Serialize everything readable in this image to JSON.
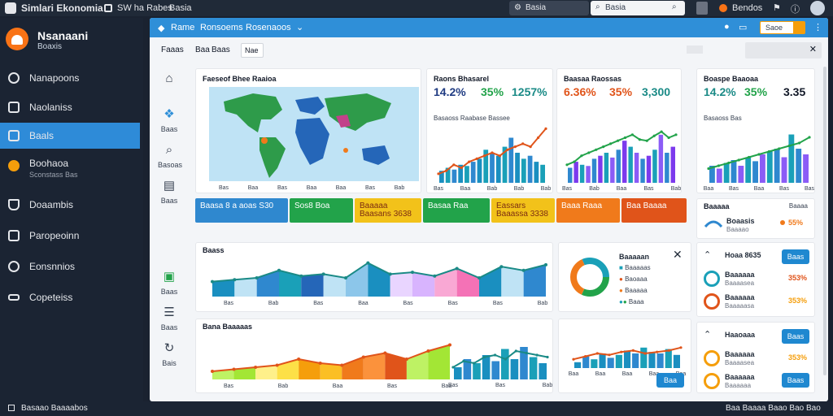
{
  "topbar": {
    "app_title": "Simlari Ekonomia",
    "menu_1": "SW ha Rabes",
    "menu_2": "Basia",
    "center_label": "Basia",
    "search_text": "Basia",
    "user_label": "Bendos"
  },
  "sidebar": {
    "brand_title": "Nsanaani",
    "brand_subtitle": "Boaxis",
    "items": [
      {
        "label": "Nanapoons",
        "sub": ""
      },
      {
        "label": "Naolaniss",
        "sub": ""
      },
      {
        "label": "Baals",
        "sub": ""
      },
      {
        "label": "Boohaoa",
        "sub": "Sconstass Bas"
      },
      {
        "label": "Doaambis",
        "sub": ""
      },
      {
        "label": "Paropeoinn",
        "sub": ""
      },
      {
        "label": "Eonsnnios",
        "sub": ""
      },
      {
        "label": "Copeteiss",
        "sub": ""
      }
    ]
  },
  "window": {
    "tabs": [
      "Rame",
      "Ronsoems",
      "Rosenaoos"
    ],
    "toolbar": [
      "Faaas",
      "Baa",
      "Baas"
    ],
    "toolbar_field_value": "Nae",
    "orange_btn": "Saoe",
    "right_field_value": ""
  },
  "rail": [
    "",
    "Baas",
    "Basoas",
    "Baas",
    "Baas",
    "Baas",
    "Bais"
  ],
  "map_card": {
    "title": "Faeseof Bhee Raaioa",
    "ticks": [
      "Bas",
      "Baa",
      "Bas",
      "Baa",
      "Baa",
      "Bas",
      "Bab"
    ]
  },
  "card_a": {
    "title": "Raons Bhasarel",
    "kpi_1": "14.2%",
    "kpi_2": "35%",
    "kpi_3": "1257%",
    "legend": "Basaoss Raabase Bassee",
    "ticks": [
      "Bas",
      "Baa",
      "Bab",
      "Bab",
      "Bab"
    ]
  },
  "card_b": {
    "title": "Baasaa Raossas",
    "kpi_1": "6.36%",
    "kpi_2": "35%",
    "kpi_3": "3,300",
    "ticks": [
      "Bas",
      "Bab",
      "Baa",
      "Bas",
      "Bab"
    ]
  },
  "card_c": {
    "title": "Boaspe Baaoaa",
    "kpi_1": "14.2%",
    "kpi_2": "35%",
    "kpi_3": "3.35",
    "legend": "Basaoss Bas",
    "ticks": [
      "Baa",
      "Bas",
      "Baa",
      "Bas",
      "Bas"
    ]
  },
  "tiles": [
    {
      "l1": "Baasa 8 a aoas",
      "l2": "S30",
      "color": "#2f88cf"
    },
    {
      "l1": "Sos8 Boa",
      "l2": "",
      "color": "#22a34a"
    },
    {
      "l1": "Baaaaa",
      "l2": "Baasans 3638",
      "color": "#f2c21a"
    },
    {
      "l1": "Basaa Raa",
      "l2": "",
      "color": "#22a34a"
    },
    {
      "l1": "Eassars",
      "l2": "Baaassa 3338",
      "color": "#f2c21a"
    },
    {
      "l1": "Baaa Raaa",
      "l2": "",
      "color": "#f07a1b"
    },
    {
      "l1": "Baa Baaaa",
      "l2": "",
      "color": "#e0541a"
    }
  ],
  "right_panel": {
    "title": "Baaaaa",
    "link": "Baaaa",
    "row1": {
      "name": "Boaasis",
      "sub": "Baaaao",
      "val": "55%"
    }
  },
  "area_card_1": {
    "title": "Baass",
    "ticks": [
      "Bas",
      "Bab",
      "Bas",
      "Baa",
      "Bas",
      "Bas",
      "Bas",
      "Bab"
    ]
  },
  "donut_card": {
    "title": "Baaaaan",
    "legend": [
      "Baaaaas",
      "Baoaaa",
      "Baaaaa",
      "Baaa"
    ]
  },
  "list_card_1": {
    "title": "Hoaa 8635",
    "btn": "Baas",
    "rows": [
      {
        "name": "Baaaaaa",
        "sub": "Baaaasea",
        "val": "353%"
      },
      {
        "name": "Baaaaaa",
        "sub": "Baaaaasa",
        "val": "353%"
      }
    ]
  },
  "area_card_2": {
    "title": "Bana Baaaaas",
    "ticks": [
      "Bas",
      "Bab",
      "Baa",
      "Bas",
      "Baa",
      "Bas",
      "Bas",
      "Bab"
    ]
  },
  "bar_card": {
    "title": "",
    "btn": "Baa",
    "ticks": [
      "Baa",
      "Baa",
      "Baa",
      "Baa",
      "Baa"
    ]
  },
  "list_card_2": {
    "title": "Haaoaaa",
    "btn": "Baas",
    "rows": [
      {
        "name": "Baaaaaa",
        "sub": "Baaaasea",
        "val": "353%"
      },
      {
        "name": "Baaaaaa",
        "sub": "Baaaaaa",
        "val": ""
      }
    ],
    "btn2": "Baas"
  },
  "statusbar": {
    "left": "Basaao Baaaabos",
    "right": "Baa Baaaa Baao Bao Bao"
  },
  "colors": {
    "accent": "#2f8fd8",
    "sidebar": "#1b2433",
    "teal": "#1aa0b8",
    "orange": "#f07a1b",
    "green": "#22a34a"
  }
}
